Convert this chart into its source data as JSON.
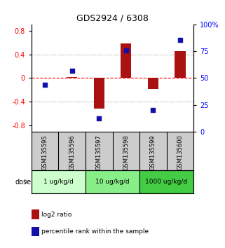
{
  "title": "GDS2924 / 6308",
  "samples": [
    "GSM135595",
    "GSM135596",
    "GSM135597",
    "GSM135598",
    "GSM135599",
    "GSM135600"
  ],
  "log2_ratio": [
    0.0,
    0.02,
    -0.52,
    0.58,
    -0.18,
    0.45
  ],
  "percentile_rank": [
    44,
    57,
    12,
    76,
    20,
    86
  ],
  "doses": [
    {
      "label": "1 ug/kg/d",
      "samples": [
        0,
        1
      ],
      "color": "#ccffcc"
    },
    {
      "label": "10 ug/kg/d",
      "samples": [
        2,
        3
      ],
      "color": "#88ee88"
    },
    {
      "label": "1000 ug/kg/d",
      "samples": [
        4,
        5
      ],
      "color": "#44cc44"
    }
  ],
  "ylim_left": [
    -0.9,
    0.9
  ],
  "ylim_right": [
    0,
    100
  ],
  "yticks_left": [
    -0.8,
    -0.4,
    0.0,
    0.4,
    0.8
  ],
  "yticks_right": [
    0,
    25,
    50,
    75,
    100
  ],
  "bar_color": "#aa1111",
  "dot_color": "#1111aa",
  "bg_color": "#ffffff",
  "plot_bg": "#ffffff",
  "dose_label": "dose",
  "legend_log2": "log2 ratio",
  "legend_pct": "percentile rank within the sample",
  "sample_bg": "#cccccc"
}
